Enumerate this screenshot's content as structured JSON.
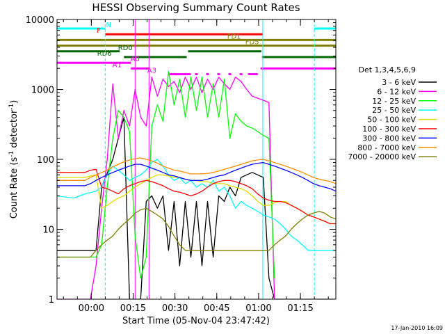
{
  "chart_data": {
    "type": "line",
    "title": "HESSI Observing Summary Count Rates",
    "xlabel": "Start Time (05-Nov-04 23:47:42)",
    "ylabel_main": "Count Rate (s",
    "ylabel_sup1": "-1",
    "ylabel_mid": " detector",
    "ylabel_sup2": "-1",
    "ylabel_end": ")",
    "xlim": [
      0,
      100
    ],
    "ylim": [
      1,
      10000
    ],
    "yscale": "log",
    "xticks": [
      {
        "label": "00:00",
        "t": 12.3
      },
      {
        "label": "00:15",
        "t": 27.3
      },
      {
        "label": "00:30",
        "t": 42.3
      },
      {
        "label": "00:45",
        "t": 57.3
      },
      {
        "label": "01:00",
        "t": 72.3
      },
      {
        "label": "01:15",
        "t": 87.3
      }
    ],
    "yticks": [
      {
        "label": "1",
        "v": 1
      },
      {
        "label": "10",
        "v": 10
      },
      {
        "label": "100",
        "v": 100
      },
      {
        "label": "1000",
        "v": 1000
      },
      {
        "label": "10000",
        "v": 10000
      }
    ],
    "legend_title": "Det 1,3,4,5,6,9",
    "legend_placement": "right",
    "series": [
      {
        "name": "3 - 6 keV",
        "color": "#000000",
        "x": [
          0,
          14,
          16,
          20,
          24,
          26,
          28,
          30,
          32,
          34,
          36,
          38,
          40,
          42,
          44,
          46,
          48,
          50,
          52,
          54,
          56,
          58,
          60,
          62,
          64,
          66,
          68,
          70,
          72,
          74,
          76,
          78,
          80,
          82,
          84,
          86,
          88,
          90,
          92,
          94,
          96,
          98,
          100
        ],
        "y": [
          5,
          5,
          40,
          100,
          400,
          1,
          1,
          1,
          25,
          30,
          20,
          30,
          5,
          25,
          3,
          25,
          4,
          25,
          3,
          25,
          4,
          30,
          25,
          40,
          30,
          55,
          60,
          65,
          60,
          55,
          2,
          1,
          1,
          1,
          1,
          1,
          1,
          1,
          1,
          1,
          1,
          1,
          1
        ]
      },
      {
        "name": "6 - 12 keV",
        "color": "#ff00ff",
        "x": [
          0,
          12,
          14,
          16,
          18,
          20,
          22,
          24,
          26,
          28,
          30,
          32,
          34,
          36,
          38,
          40,
          42,
          44,
          46,
          48,
          50,
          52,
          54,
          56,
          58,
          60,
          62,
          64,
          66,
          68,
          70,
          72,
          74,
          76,
          78
        ],
        "y": [
          1,
          1,
          3,
          20,
          100,
          1200,
          200,
          500,
          300,
          1000,
          400,
          300,
          1500,
          800,
          1400,
          1100,
          1300,
          900,
          1500,
          1000,
          1500,
          900,
          1400,
          1000,
          1500,
          1200,
          1000,
          1500,
          1300,
          1000,
          800,
          750,
          700,
          650,
          1
        ]
      },
      {
        "name": "12 - 25 keV",
        "color": "#00ff00",
        "x": [
          0,
          14,
          16,
          18,
          20,
          22,
          24,
          26,
          28,
          30,
          32,
          34,
          36,
          38,
          40,
          42,
          44,
          46,
          48,
          50,
          52,
          54,
          56,
          58,
          60,
          62,
          64,
          66,
          68,
          70,
          72,
          74,
          76,
          78
        ],
        "y": [
          4,
          4,
          6,
          40,
          200,
          500,
          400,
          250,
          8,
          2,
          4,
          300,
          600,
          350,
          1800,
          600,
          1400,
          400,
          1500,
          500,
          1500,
          400,
          1200,
          400,
          1400,
          200,
          450,
          350,
          300,
          280,
          250,
          220,
          200,
          2
        ]
      },
      {
        "name": "25 - 50 keV",
        "color": "#00ffff",
        "x": [
          0,
          6,
          10,
          14,
          16,
          18,
          20,
          22,
          24,
          26,
          28,
          30,
          32,
          34,
          36,
          38,
          40,
          42,
          44,
          46,
          48,
          50,
          52,
          54,
          56,
          58,
          60,
          62,
          64,
          66,
          68,
          70,
          72,
          74,
          76,
          78,
          80,
          82,
          84,
          86,
          88,
          90,
          92,
          94,
          96,
          98,
          100
        ],
        "y": [
          30,
          28,
          32,
          35,
          40,
          60,
          80,
          70,
          60,
          50,
          55,
          60,
          70,
          90,
          100,
          80,
          60,
          50,
          55,
          45,
          50,
          40,
          45,
          40,
          50,
          35,
          40,
          30,
          20,
          25,
          22,
          20,
          18,
          16,
          15,
          14,
          12,
          10,
          8,
          7,
          6,
          5,
          5,
          5,
          5,
          5,
          5
        ]
      },
      {
        "name": "50 - 100 keV",
        "color": "#dddd00",
        "x": [
          0,
          10,
          12,
          14,
          16,
          18,
          20,
          22,
          24,
          26,
          28,
          30,
          32,
          34,
          36,
          38,
          40,
          42,
          44,
          46,
          48,
          50,
          52,
          54,
          56,
          58,
          60,
          62,
          64,
          66,
          68,
          70,
          72,
          74,
          76,
          78,
          80,
          82,
          84,
          86,
          88,
          90,
          92,
          94,
          96,
          98,
          100
        ],
        "y": [
          55,
          55,
          58,
          60,
          20,
          22,
          25,
          28,
          30,
          35,
          40,
          45,
          50,
          55,
          60,
          60,
          58,
          55,
          55,
          52,
          50,
          50,
          48,
          48,
          45,
          45,
          45,
          42,
          40,
          38,
          35,
          30,
          25,
          22,
          22,
          24,
          25,
          25,
          22,
          20,
          18,
          16,
          15,
          14,
          13,
          12,
          12
        ]
      },
      {
        "name": "100 - 300 keV",
        "color": "#ff0000",
        "x": [
          0,
          10,
          12,
          14,
          16,
          18,
          20,
          22,
          24,
          26,
          28,
          30,
          32,
          34,
          36,
          38,
          40,
          42,
          44,
          46,
          48,
          50,
          52,
          54,
          56,
          58,
          60,
          62,
          64,
          66,
          68,
          70,
          72,
          74,
          76,
          78,
          80,
          82,
          84,
          86,
          88,
          90,
          92,
          94,
          96,
          98,
          100
        ],
        "y": [
          65,
          65,
          70,
          72,
          40,
          38,
          35,
          32,
          38,
          42,
          45,
          48,
          50,
          48,
          45,
          42,
          38,
          35,
          34,
          32,
          30,
          32,
          35,
          40,
          45,
          48,
          50,
          50,
          48,
          45,
          42,
          38,
          32,
          28,
          26,
          25,
          25,
          24,
          22,
          20,
          18,
          16,
          15,
          14,
          13,
          12,
          12
        ]
      },
      {
        "name": "300 - 800 keV",
        "color": "#0000ff",
        "x": [
          0,
          10,
          12,
          14,
          16,
          18,
          20,
          22,
          24,
          26,
          28,
          30,
          32,
          34,
          36,
          38,
          40,
          42,
          44,
          46,
          48,
          50,
          52,
          54,
          56,
          58,
          60,
          62,
          64,
          66,
          68,
          70,
          72,
          74,
          76,
          78,
          80,
          82,
          84,
          86,
          88,
          90,
          92,
          94,
          96,
          98,
          100
        ],
        "y": [
          42,
          42,
          45,
          50,
          55,
          60,
          65,
          70,
          75,
          80,
          85,
          85,
          80,
          75,
          70,
          65,
          60,
          58,
          55,
          52,
          50,
          50,
          50,
          52,
          55,
          58,
          60,
          65,
          70,
          75,
          80,
          85,
          88,
          90,
          85,
          80,
          75,
          70,
          65,
          60,
          55,
          50,
          45,
          42,
          40,
          38,
          35
        ]
      },
      {
        "name": "800 - 7000 keV",
        "color": "#ff8c00",
        "x": [
          0,
          10,
          12,
          14,
          16,
          18,
          20,
          22,
          24,
          26,
          28,
          30,
          32,
          34,
          36,
          38,
          40,
          42,
          44,
          46,
          48,
          50,
          52,
          54,
          56,
          58,
          60,
          62,
          64,
          66,
          68,
          70,
          72,
          74,
          76,
          78,
          80,
          82,
          84,
          86,
          88,
          90,
          92,
          94,
          96,
          98,
          100
        ],
        "y": [
          50,
          50,
          55,
          60,
          65,
          70,
          78,
          85,
          92,
          98,
          102,
          105,
          100,
          95,
          88,
          80,
          75,
          70,
          68,
          65,
          62,
          62,
          62,
          63,
          65,
          68,
          72,
          76,
          80,
          85,
          90,
          95,
          98,
          100,
          95,
          90,
          85,
          80,
          75,
          70,
          65,
          60,
          55,
          52,
          50,
          48,
          45
        ]
      },
      {
        "name": "7000 - 20000 keV",
        "color": "#808000",
        "x": [
          0,
          10,
          12,
          14,
          16,
          18,
          20,
          22,
          24,
          26,
          28,
          30,
          32,
          34,
          36,
          38,
          40,
          42,
          44,
          46,
          48,
          50,
          52,
          54,
          56,
          58,
          60,
          62,
          64,
          66,
          68,
          70,
          72,
          74,
          76,
          78,
          80,
          82,
          84,
          86,
          88,
          90,
          92,
          94,
          96,
          98,
          100
        ],
        "y": [
          4,
          4,
          4,
          5,
          6,
          7,
          8,
          10,
          12,
          14,
          17,
          19,
          20,
          18,
          16,
          14,
          11,
          8,
          6,
          5,
          5,
          5,
          5,
          5,
          5,
          5,
          5,
          5,
          5,
          5,
          5,
          5,
          5,
          5,
          5,
          6,
          7,
          8,
          10,
          12,
          14,
          16,
          17,
          18,
          17,
          15,
          14
        ]
      }
    ],
    "flags": [
      {
        "name": "N",
        "color": "#00ffff",
        "y_pos": 1,
        "segments": [
          [
            0,
            17.3
          ],
          [
            92.3,
            100
          ]
        ],
        "label_t": 18.5
      },
      {
        "name": "F",
        "color": "#ff0000",
        "y_pos": 2,
        "segments": [
          [
            17.3,
            73.8
          ]
        ],
        "label_t": 15.0
      },
      {
        "name": "FD1",
        "color": "#808000",
        "y_pos": 3,
        "segments": [
          [
            0,
            100
          ]
        ],
        "label_t": 63.5
      },
      {
        "name": "FD5",
        "color": "#808000",
        "y_pos": 4,
        "segments": [
          [
            0,
            100
          ]
        ],
        "label_t": 70.0
      },
      {
        "name": "RD0",
        "color": "#006400",
        "y_pos": 5,
        "segments": [
          [
            0,
            22.5
          ],
          [
            47.0,
            73.3
          ]
        ],
        "label_t": 24.5
      },
      {
        "name": "RD6",
        "color": "#006400",
        "y_pos": 6,
        "segments": [
          [
            24.0,
            46.5
          ],
          [
            73.5,
            100
          ]
        ],
        "label_t": 17.0
      },
      {
        "name": "A0",
        "color": "#ff00ff",
        "y_pos": 7,
        "segments": [
          [
            0,
            26.5
          ]
        ],
        "label_t": 28.0
      },
      {
        "name": "A1",
        "color": "#ff00ff",
        "y_pos": 8,
        "segments": [
          [
            26.5,
            33.0
          ],
          [
            73.0,
            100
          ]
        ],
        "label_t": 21.5
      },
      {
        "name": "A3",
        "color": "#ff00ff",
        "y_pos": 9,
        "segments": [
          [
            40.0,
            48.0
          ],
          [
            49.5,
            50.5
          ],
          [
            53.5,
            54.5
          ],
          [
            57.5,
            58.5
          ],
          [
            61.5,
            62.5
          ],
          [
            65.5,
            66.5
          ],
          [
            68.5,
            72.0
          ]
        ],
        "label_t": 34.0
      }
    ],
    "vlines": [
      {
        "t": 17.3,
        "color": "#00ffff",
        "style": "dashed"
      },
      {
        "t": 73.8,
        "color": "#00ffff",
        "style": "solid"
      },
      {
        "t": 92.3,
        "color": "#00ffff",
        "style": "dashed"
      },
      {
        "t": 28.0,
        "color": "#ff00ff",
        "style": "solid"
      },
      {
        "t": 33.0,
        "color": "#ff00ff",
        "style": "solid"
      }
    ]
  },
  "footer": {
    "timestamp": "17-Jan-2010 16:09"
  }
}
